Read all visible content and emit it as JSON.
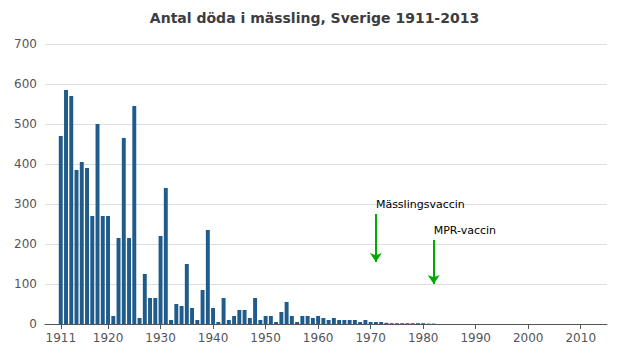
{
  "chart_data": {
    "type": "bar",
    "title": "Antal döda i mässling, Sverige 1911-2013",
    "x": [
      1911,
      1912,
      1913,
      1914,
      1915,
      1916,
      1917,
      1918,
      1919,
      1920,
      1921,
      1922,
      1923,
      1924,
      1925,
      1926,
      1927,
      1928,
      1929,
      1930,
      1931,
      1932,
      1933,
      1934,
      1935,
      1936,
      1937,
      1938,
      1939,
      1940,
      1941,
      1942,
      1943,
      1944,
      1945,
      1946,
      1947,
      1948,
      1949,
      1950,
      1951,
      1952,
      1953,
      1954,
      1955,
      1956,
      1957,
      1958,
      1959,
      1960,
      1961,
      1962,
      1963,
      1964,
      1965,
      1966,
      1967,
      1968,
      1969,
      1970,
      1971,
      1972,
      1973,
      1974,
      1975,
      1976,
      1977,
      1978,
      1979,
      1980,
      1981,
      1982,
      1983,
      1984,
      1985,
      1986,
      1987,
      1988,
      1989,
      1990,
      1991,
      1992,
      1993,
      1994,
      1995,
      1996,
      1997,
      1998,
      1999,
      2000,
      2001,
      2002,
      2003,
      2004,
      2005,
      2006,
      2007,
      2008,
      2009,
      2010,
      2011,
      2012,
      2013
    ],
    "values": [
      470,
      585,
      570,
      385,
      405,
      390,
      270,
      500,
      270,
      270,
      20,
      215,
      465,
      215,
      545,
      15,
      125,
      65,
      65,
      220,
      340,
      10,
      50,
      45,
      150,
      40,
      10,
      85,
      235,
      40,
      5,
      65,
      10,
      20,
      35,
      35,
      15,
      65,
      10,
      20,
      20,
      5,
      30,
      55,
      20,
      5,
      20,
      20,
      15,
      20,
      15,
      10,
      15,
      10,
      10,
      10,
      10,
      5,
      10,
      5,
      5,
      5,
      3,
      2,
      2,
      2,
      2,
      2,
      2,
      2,
      1,
      1,
      0,
      0,
      0,
      0,
      0,
      0,
      0,
      0,
      0,
      0,
      0,
      0,
      0,
      0,
      0,
      0,
      0,
      0,
      0,
      0,
      0,
      0,
      0,
      0,
      0,
      0,
      0,
      0,
      0,
      0,
      0
    ],
    "color": "#1F5C8B",
    "xlim": [
      1908,
      2015
    ],
    "xticks": [
      1911,
      1920,
      1930,
      1940,
      1950,
      1960,
      1970,
      1980,
      1990,
      2000,
      2010
    ],
    "ylim": [
      0,
      700
    ],
    "yticks": [
      0,
      100,
      200,
      300,
      400,
      500,
      600,
      700
    ],
    "grid": true,
    "annotations": [
      {
        "text": "Mässlingsvaccin",
        "x": 1971,
        "arrow_from": 275,
        "arrow_to": 155,
        "color": "#00AA00"
      },
      {
        "text": "MPR-vaccin",
        "x": 1982,
        "arrow_from": 210,
        "arrow_to": 100,
        "color": "#00AA00"
      }
    ]
  }
}
